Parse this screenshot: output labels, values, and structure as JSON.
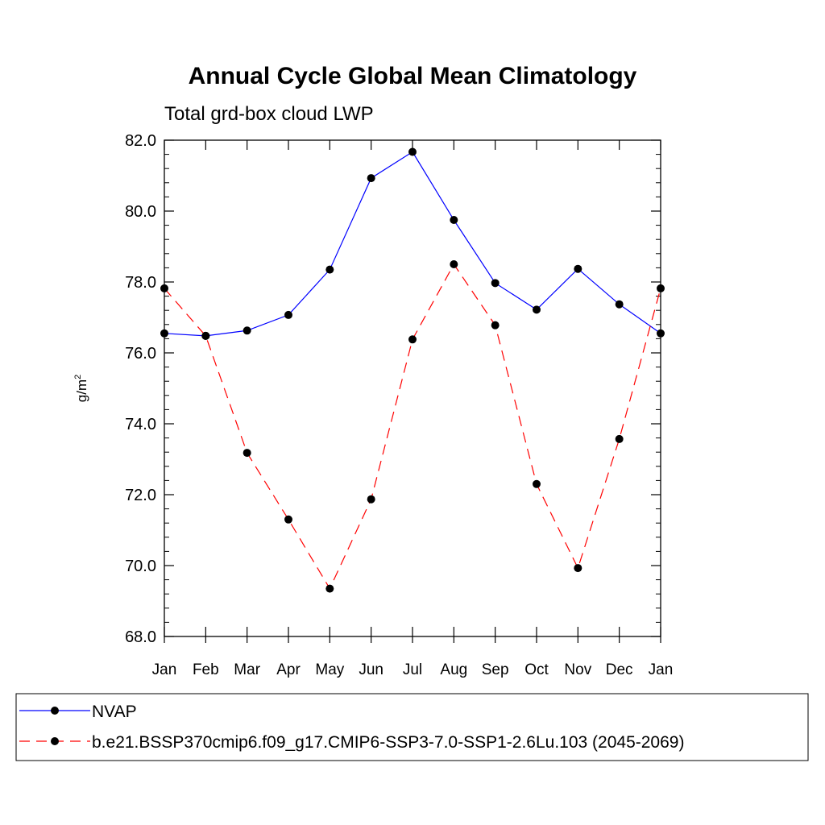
{
  "chart_data": {
    "type": "line",
    "title": "Annual Cycle Global Mean Climatology",
    "subtitle": "Total grd-box cloud LWP",
    "ylabel": "g/m",
    "ylabel_superscript": "2",
    "xlabel": "",
    "categories": [
      "Jan",
      "Feb",
      "Mar",
      "Apr",
      "May",
      "Jun",
      "Jul",
      "Aug",
      "Sep",
      "Oct",
      "Nov",
      "Dec",
      "Jan"
    ],
    "ylim": [
      68.0,
      82.0
    ],
    "yticks": [
      "68.0",
      "70.0",
      "72.0",
      "74.0",
      "76.0",
      "78.0",
      "80.0",
      "82.0"
    ],
    "grid": false,
    "legend_position": "bottom",
    "series": [
      {
        "name": "NVAP",
        "color": "#0000ff",
        "dash": "solid",
        "marker": "circle",
        "values": [
          76.55,
          76.48,
          76.63,
          77.07,
          78.35,
          80.93,
          81.67,
          79.75,
          77.97,
          77.22,
          78.37,
          77.37,
          76.55
        ]
      },
      {
        "name": "b.e21.BSSP370cmip6.f09_g17.CMIP6-SSP3-7.0-SSP1-2.6Lu.103 (2045-2069)",
        "color": "#ff0000",
        "dash": "dashed",
        "marker": "circle",
        "values": [
          77.82,
          76.48,
          73.18,
          71.3,
          69.35,
          71.87,
          76.38,
          78.5,
          76.78,
          72.3,
          69.93,
          73.57,
          77.82
        ]
      }
    ]
  }
}
